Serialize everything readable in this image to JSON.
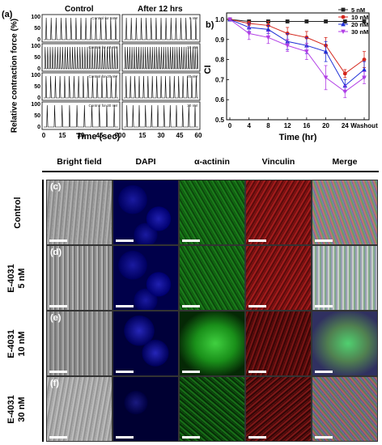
{
  "panel_a": {
    "label": "(a)",
    "col_left": "Control",
    "col_right": "After 12 hrs",
    "ylabel": "Relative contraction force (%)",
    "xlabel": "Time (sec)",
    "row_labels": [
      "Control for 5nM",
      "Control for 10 nM",
      "Control for 20 nM",
      "Control for 30 nM"
    ],
    "right_labels": [
      "5 nM",
      "10 nM",
      "20 nM",
      "30 nM"
    ],
    "yticks": [
      "100",
      "50",
      "0"
    ],
    "xticks": [
      "0",
      "15",
      "30",
      "45",
      "60",
      "0",
      "15",
      "30",
      "45",
      "60"
    ],
    "beats_left": [
      15,
      30,
      16,
      10
    ],
    "beats_right": [
      15,
      33,
      17,
      12
    ]
  },
  "chart_data": {
    "label": "b)",
    "type": "line",
    "x_labels": [
      "0",
      "4",
      "8",
      "12",
      "16",
      "20",
      "24",
      "Washout"
    ],
    "xlabel": "Time (hr)",
    "ylabel": "CI",
    "ylim": [
      0.5,
      1.0
    ],
    "yticks": [
      "1.0",
      "0.9",
      "0.8",
      "0.7",
      "0.6",
      "0.5"
    ],
    "legend_position": "top-right",
    "series": [
      {
        "name": "5 nM",
        "color": "#222222",
        "marker": "square",
        "values": [
          1.0,
          0.99,
          0.99,
          0.99,
          0.99,
          0.99,
          0.99,
          0.99
        ],
        "errors": [
          0,
          0.005,
          0.005,
          0.005,
          0.005,
          0.005,
          0.005,
          0.005
        ]
      },
      {
        "name": "10 nM",
        "color": "#d4261c",
        "marker": "circle",
        "values": [
          1.0,
          0.98,
          0.97,
          0.93,
          0.91,
          0.87,
          0.73,
          0.8
        ],
        "errors": [
          0,
          0.01,
          0.02,
          0.03,
          0.03,
          0.04,
          0.02,
          0.04
        ]
      },
      {
        "name": "20 nM",
        "color": "#1f2fd6",
        "marker": "triangle",
        "values": [
          1.0,
          0.96,
          0.95,
          0.89,
          0.87,
          0.84,
          0.67,
          0.75
        ],
        "errors": [
          0,
          0.02,
          0.02,
          0.04,
          0.04,
          0.05,
          0.03,
          0.04
        ]
      },
      {
        "name": "30 nM",
        "color": "#b23fe6",
        "marker": "triangle-down",
        "values": [
          1.0,
          0.93,
          0.91,
          0.87,
          0.84,
          0.71,
          0.64,
          0.71
        ],
        "errors": [
          0,
          0.03,
          0.03,
          0.03,
          0.04,
          0.06,
          0.03,
          0.03
        ]
      }
    ]
  },
  "panel_grid": {
    "columns": [
      "Bright field",
      "DAPI",
      "α-actinin",
      "Vinculin",
      "Merge"
    ],
    "rows": [
      {
        "letter": "(c)",
        "label1": "Control",
        "label2": ""
      },
      {
        "letter": "(d)",
        "label1": "E-4031",
        "label2": "5 nM"
      },
      {
        "letter": "(e)",
        "label1": "E-4031",
        "label2": "10 nM"
      },
      {
        "letter": "(f)",
        "label1": "E-4031",
        "label2": "30 nM"
      }
    ]
  }
}
